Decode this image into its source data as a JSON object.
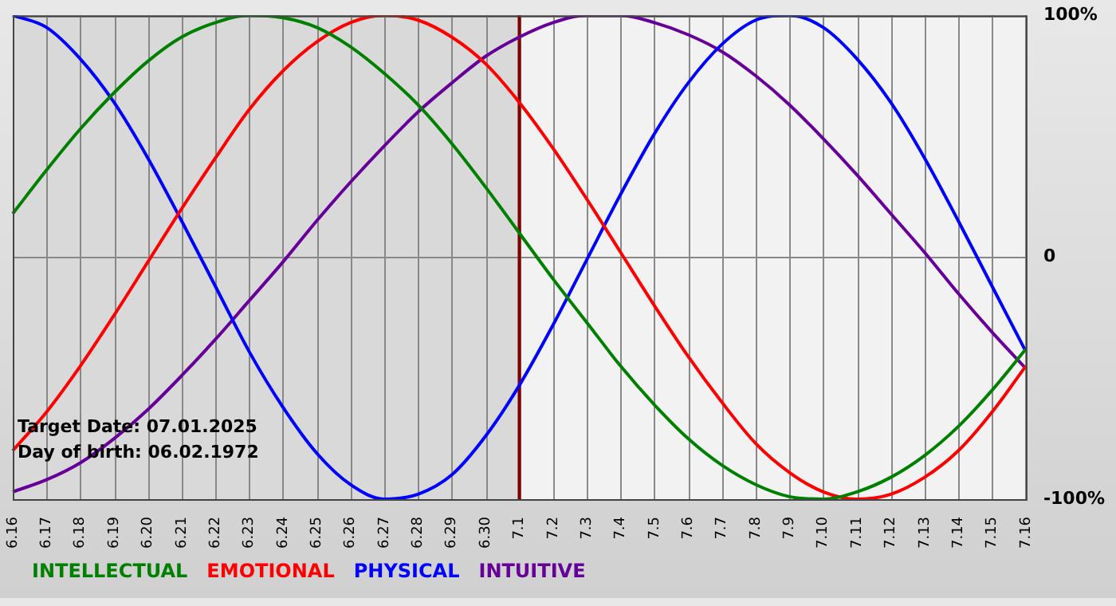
{
  "chart_data": {
    "type": "line",
    "categories": [
      "6.16",
      "6.17",
      "6.18",
      "6.19",
      "6.20",
      "6.21",
      "6.22",
      "6.23",
      "6.24",
      "6.25",
      "6.26",
      "6.27",
      "6.28",
      "6.29",
      "6.30",
      "7.1",
      "7.2",
      "7.3",
      "7.4",
      "7.5",
      "7.6",
      "7.7",
      "7.8",
      "7.9",
      "7.10",
      "7.11",
      "7.12",
      "7.13",
      "7.14",
      "7.15",
      "7.16"
    ],
    "series": [
      {
        "name": "INTELLECTUAL",
        "color": "#008000",
        "values": [
          18,
          36,
          53,
          68,
          81,
          91,
          97,
          100,
          99,
          95,
          87,
          76,
          63,
          47,
          29,
          10,
          -9,
          -27,
          -45,
          -61,
          -75,
          -86,
          -94,
          -99,
          -100,
          -97,
          -91,
          -82,
          -70,
          -55,
          -38
        ]
      },
      {
        "name": "EMOTIONAL",
        "color": "#ff0000",
        "values": [
          -80,
          -64,
          -45,
          -24,
          -2,
          20,
          41,
          61,
          77,
          89,
          97,
          100,
          98,
          91,
          80,
          64,
          45,
          24,
          2,
          -20,
          -41,
          -60,
          -77,
          -89,
          -97,
          -100,
          -98,
          -91,
          -80,
          -64,
          -45
        ]
      },
      {
        "name": "PHYSICAL",
        "color": "#0000ff",
        "values": [
          100,
          95,
          82,
          64,
          41,
          15,
          -12,
          -39,
          -62,
          -81,
          -94,
          -100,
          -98,
          -90,
          -74,
          -53,
          -28,
          -1,
          26,
          51,
          72,
          88,
          98,
          100,
          95,
          82,
          64,
          41,
          15,
          -12,
          -39
        ]
      },
      {
        "name": "INTUITIVE",
        "color": "#660099",
        "values": [
          -97,
          -92,
          -85,
          -75,
          -63,
          -49,
          -34,
          -18,
          -2,
          15,
          31,
          46,
          60,
          72,
          83,
          91,
          97,
          100,
          100,
          97,
          92,
          85,
          75,
          63,
          49,
          34,
          18,
          2,
          -15,
          -31,
          -46
        ]
      }
    ],
    "ylim": [
      -100,
      100
    ],
    "yticks": [
      {
        "value": -100,
        "label": "-100%"
      },
      0,
      {
        "value": 100,
        "label": "100%"
      }
    ],
    "grid": true,
    "legend": "bottom left",
    "marker": "none",
    "line_style": "solid",
    "ref_lines": [
      {
        "axis": "x",
        "value": "7.1",
        "color": "#800000"
      }
    ],
    "bands": [
      {
        "axis": "x",
        "from": "6.16",
        "to": "7.1",
        "color": "#d9d9d9"
      }
    ],
    "annotations": [
      "Target Date: 07.01.2025",
      "Day of birth: 06.02.1972"
    ]
  }
}
